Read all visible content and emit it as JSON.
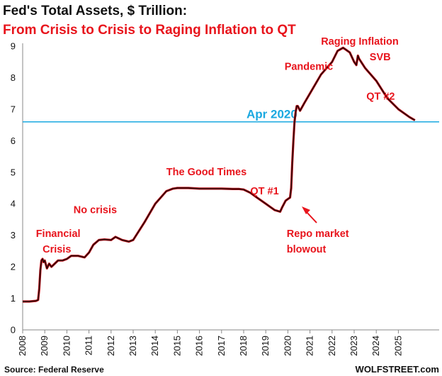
{
  "chart_data": {
    "type": "line",
    "title": "Fed's Total Assets, $ Trillion:",
    "subtitle": "From Crisis to Crisis to Raging Inflation to QT",
    "source": "Source: Federal Reserve",
    "brand": "WOLFSTREET.com",
    "xlim": [
      2008.0,
      2025.83
    ],
    "ylim": [
      0,
      9
    ],
    "x_ticks": [
      2008,
      2009,
      2010,
      2011,
      2012,
      2013,
      2014,
      2015,
      2016,
      2017,
      2018,
      2019,
      2020,
      2021,
      2022,
      2023,
      2024,
      2025
    ],
    "x_tick_labels": [
      "2008",
      "2009",
      "2010",
      "2011",
      "2012",
      "2013",
      "2014",
      "2015",
      "2016",
      "2017",
      "2018",
      "2019",
      "2020",
      "2021",
      "2022",
      "2023",
      "2024",
      "2025"
    ],
    "y_ticks": [
      0,
      1,
      2,
      3,
      4,
      5,
      6,
      7,
      8,
      9
    ],
    "y_tick_labels": [
      "0",
      "1",
      "2",
      "3",
      "4",
      "5",
      "6",
      "7",
      "8",
      "9"
    ],
    "grid": false,
    "colors": {
      "line": "#1a0000",
      "line_under": "#c0141c",
      "reference": "#1aa8e0",
      "annotation": "#e8141c"
    },
    "reference_line": {
      "y": 6.6,
      "label": "Apr 2020"
    },
    "series": [
      {
        "x": [
          2008.0,
          2008.3,
          2008.6,
          2008.7,
          2008.75,
          2008.8,
          2008.85,
          2008.9,
          2008.95,
          2009.0,
          2009.1,
          2009.2,
          2009.3,
          2009.45,
          2009.6,
          2009.8,
          2010.0,
          2010.2,
          2010.5,
          2010.8,
          2011.0,
          2011.2,
          2011.45,
          2011.7,
          2012.0,
          2012.2,
          2012.5,
          2012.8,
          2013.0,
          2013.5,
          2014.0,
          2014.5,
          2014.8,
          2015.0,
          2015.5,
          2016.0,
          2016.5,
          2017.0,
          2017.5,
          2017.8,
          2018.0,
          2018.3,
          2018.6,
          2019.0,
          2019.4,
          2019.65,
          2019.75,
          2019.9,
          2020.0,
          2020.1,
          2020.15,
          2020.2,
          2020.25,
          2020.3,
          2020.35,
          2020.4,
          2020.45,
          2020.55,
          2020.75,
          2021.0,
          2021.5,
          2022.0,
          2022.25,
          2022.5,
          2022.8,
          2023.0,
          2023.1,
          2023.17,
          2023.22,
          2023.5,
          2024.0,
          2024.5,
          2025.0,
          2025.5,
          2025.75
        ],
        "values": [
          0.9,
          0.9,
          0.92,
          0.95,
          1.3,
          1.9,
          2.2,
          2.25,
          2.15,
          2.2,
          1.95,
          2.1,
          2.0,
          2.1,
          2.2,
          2.2,
          2.25,
          2.35,
          2.35,
          2.3,
          2.45,
          2.7,
          2.85,
          2.87,
          2.85,
          2.95,
          2.85,
          2.8,
          2.85,
          3.4,
          4.0,
          4.4,
          4.48,
          4.5,
          4.5,
          4.48,
          4.48,
          4.48,
          4.47,
          4.47,
          4.45,
          4.35,
          4.2,
          4.0,
          3.8,
          3.75,
          3.9,
          4.1,
          4.15,
          4.2,
          4.5,
          5.3,
          6.0,
          6.6,
          6.9,
          7.1,
          7.1,
          6.95,
          7.2,
          7.5,
          8.1,
          8.5,
          8.85,
          8.95,
          8.8,
          8.5,
          8.4,
          8.7,
          8.6,
          8.3,
          7.9,
          7.35,
          7.0,
          6.75,
          6.65
        ]
      }
    ],
    "annotations": [
      {
        "text": "Financial",
        "x": 2008.6,
        "y": 2.95
      },
      {
        "text": "Crisis",
        "x": 2008.9,
        "y": 2.45
      },
      {
        "text": "No crisis",
        "x": 2010.3,
        "y": 3.7
      },
      {
        "text": "The Good Times",
        "x": 2014.5,
        "y": 4.9
      },
      {
        "text": "QT #1",
        "x": 2018.3,
        "y": 4.3
      },
      {
        "text": "Repo market",
        "x": 2019.95,
        "y": 2.95
      },
      {
        "text": "blowout",
        "x": 2019.95,
        "y": 2.45
      },
      {
        "text": "Pandemic",
        "x": 2019.85,
        "y": 8.25
      },
      {
        "text": "Raging  Inflation",
        "x": 2021.5,
        "y": 9.05
      },
      {
        "text": "SVB",
        "x": 2023.7,
        "y": 8.55
      },
      {
        "text": "QT #2",
        "x": 2023.55,
        "y": 7.3
      }
    ]
  }
}
